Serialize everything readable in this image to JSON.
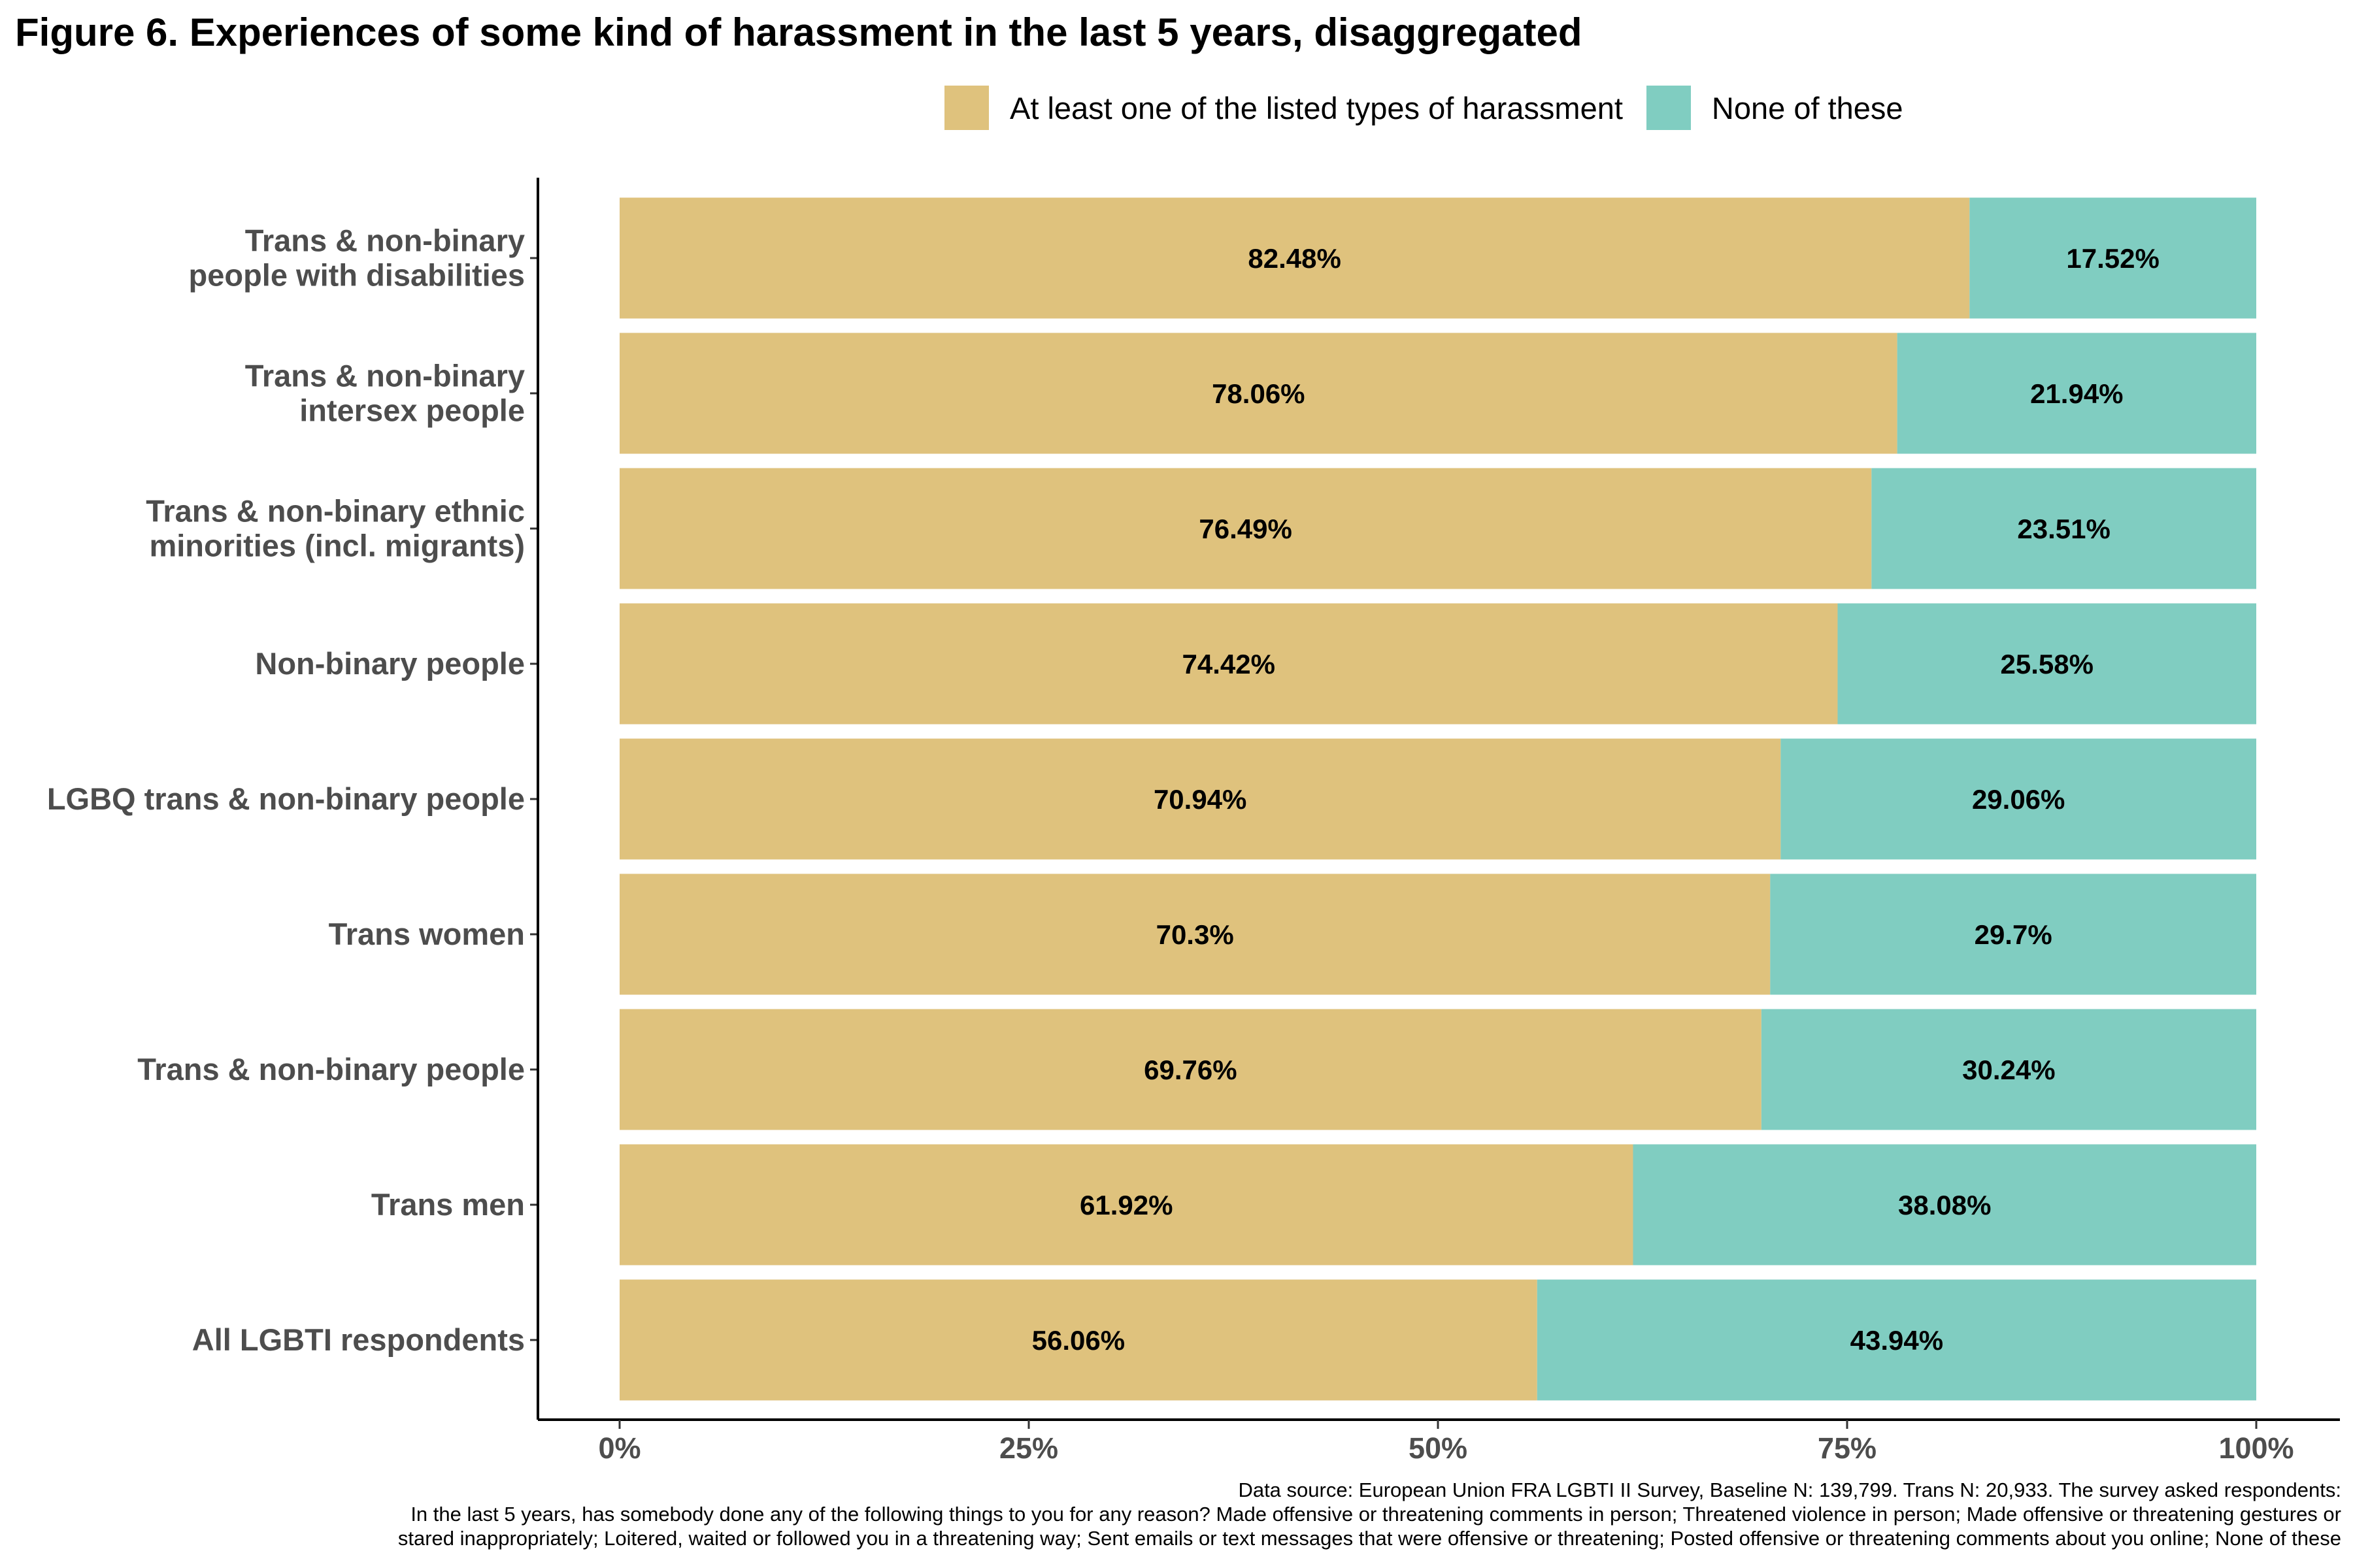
{
  "title": "Figure 6. Experiences of some kind of harassment in the last 5 years, disaggregated",
  "legend": {
    "items": [
      {
        "label": "At least one of the listed types of harassment",
        "color": "#dfc27d"
      },
      {
        "label": "None of these",
        "color": "#80cdc1"
      }
    ]
  },
  "footer": {
    "lines": [
      "Data source: European Union FRA LGBTI II Survey, Baseline N: 139,799. Trans N: 20,933. The survey asked respondents:",
      "In the last 5 years, has somebody done any of the following things to you for any reason? Made offensive or threatening comments in person; Threatened violence in person; Made offensive or threatening gestures or",
      "stared inappropriately; Loitered, waited or followed you in a threatening way; Sent emails or text messages that were offensive or threatening; Posted offensive or threatening comments about you online; None of these"
    ]
  },
  "chart_data": {
    "type": "bar",
    "orientation": "horizontal",
    "stacked": true,
    "categories": [
      [
        "Trans & non-binary",
        "people with disabilities"
      ],
      [
        "Trans & non-binary",
        "intersex people"
      ],
      [
        "Trans & non-binary ethnic",
        "minorities (incl. migrants)"
      ],
      [
        "Non-binary people"
      ],
      [
        "LGBQ trans & non-binary people"
      ],
      [
        "Trans women"
      ],
      [
        "Trans & non-binary people"
      ],
      [
        "Trans men"
      ],
      [
        "All LGBTI respondents"
      ]
    ],
    "series": [
      {
        "name": "At least one of the listed types of harassment",
        "color": "#dfc27d",
        "values": [
          82.48,
          78.06,
          76.49,
          74.42,
          70.94,
          70.3,
          69.76,
          61.92,
          56.06
        ],
        "labels": [
          "82.48%",
          "78.06%",
          "76.49%",
          "74.42%",
          "70.94%",
          "70.3%",
          "69.76%",
          "61.92%",
          "56.06%"
        ]
      },
      {
        "name": "None of these",
        "color": "#80cdc1",
        "values": [
          17.52,
          21.94,
          23.51,
          25.58,
          29.06,
          29.7,
          30.24,
          38.08,
          43.94
        ],
        "labels": [
          "17.52%",
          "21.94%",
          "23.51%",
          "25.58%",
          "29.06%",
          "29.7%",
          "30.24%",
          "38.08%",
          "43.94%"
        ]
      }
    ],
    "xlim": [
      0,
      100
    ],
    "x_ticks": [
      0,
      25,
      50,
      75,
      100
    ],
    "x_tick_labels": [
      "0%",
      "25%",
      "50%",
      "75%",
      "100%"
    ],
    "grid": false,
    "legend_position": "top"
  }
}
